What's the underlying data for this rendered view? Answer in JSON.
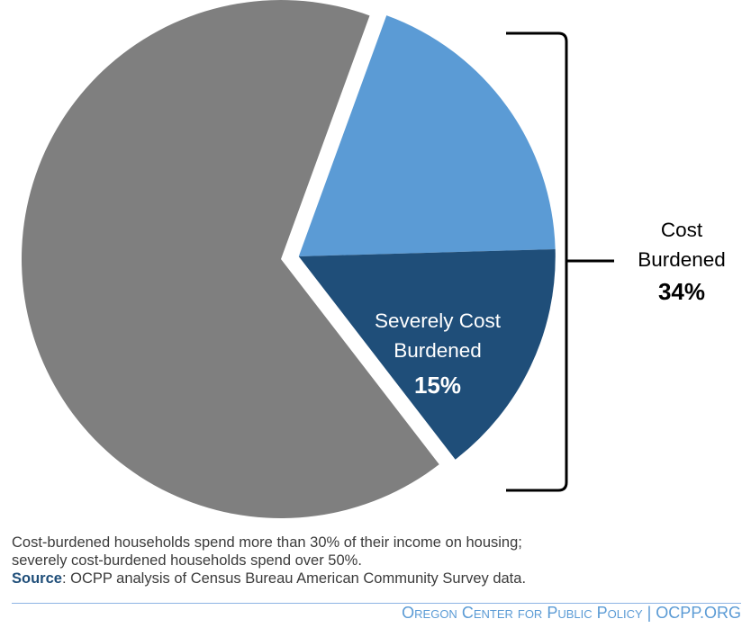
{
  "chart_data": {
    "type": "pie",
    "slices": [
      {
        "label": "",
        "value": 66,
        "color": "#7f7f7f"
      },
      {
        "label": "",
        "value": 19,
        "color": "#5b9bd5"
      },
      {
        "label": "Severely Cost Burdened",
        "value": 15,
        "display": "15%",
        "color": "#1f4e79"
      }
    ],
    "bracket": {
      "label": "Cost Burdened",
      "value": "34%"
    },
    "legend": "none"
  },
  "notes": {
    "line1": "Cost-burdened households spend more than 30% of their income on housing;",
    "line2": "severely cost-burdened households spend over 50%.",
    "source_label": "Source",
    "source_text": ": OCPP analysis of Census Bureau American Community  Survey data."
  },
  "footer": "Oregon Center for Public Policy | OCPP.ORG"
}
